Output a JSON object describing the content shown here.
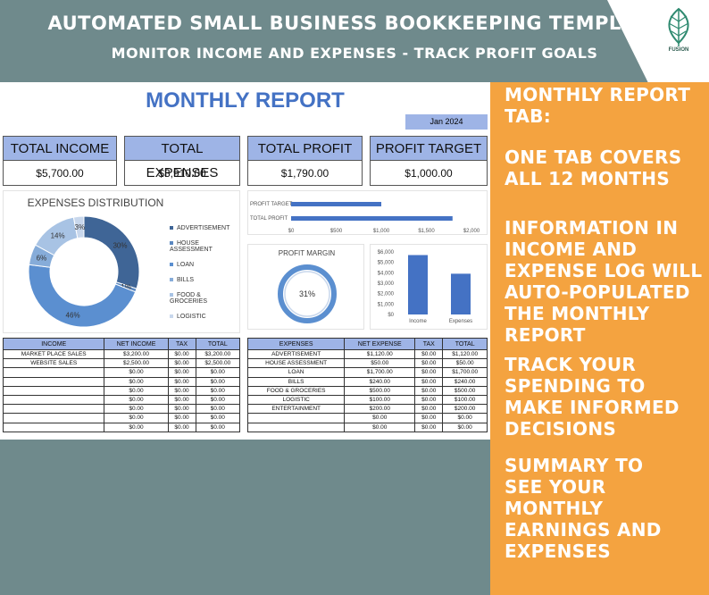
{
  "header": {
    "title": "AUTOMATED SMALL BUSINESS BOOKKEEPING TEMPLATE",
    "subtitle": "MONITOR INCOME AND EXPENSES - TRACK PROFIT GOALS",
    "logo_text": "FUSION"
  },
  "report": {
    "title": "MONTHLY REPORT",
    "month": "Jan 2024",
    "kpis": [
      {
        "label": "TOTAL INCOME",
        "value": "$5,700.00"
      },
      {
        "label": "TOTAL EXPENSES",
        "value": "$3,910.00"
      },
      {
        "label": "TOTAL PROFIT",
        "value": "$1,790.00"
      },
      {
        "label": "PROFIT TARGET",
        "value": "$1,000.00"
      }
    ]
  },
  "chart_data": [
    {
      "type": "pie",
      "title": "EXPENSES DISTRIBUTION",
      "categories": [
        "ADVERTISEMENT",
        "HOUSE ASSESSMENT",
        "LOAN",
        "BILLS",
        "FOOD & GROCERIES",
        "LOGISTIC"
      ],
      "values": [
        30,
        1,
        46,
        6,
        14,
        3
      ],
      "labels": [
        "30%",
        "1%",
        "46%",
        "6%",
        "14%",
        "3%"
      ],
      "colors": [
        "#3f6596",
        "#5b88c0",
        "#5b8fd0",
        "#86acd9",
        "#a8c3e4",
        "#c8d7ec"
      ],
      "legend": "right"
    },
    {
      "type": "bar",
      "orientation": "horizontal",
      "categories": [
        "PROFIT TARGET",
        "TOTAL PROFIT"
      ],
      "values": [
        1000,
        1790
      ],
      "xlim": [
        0,
        2000
      ],
      "ticks": [
        "$0",
        "$500",
        "$1,000",
        "$1,500",
        "$2,000"
      ]
    },
    {
      "type": "pie",
      "title": "PROFIT MARGIN",
      "values": [
        31,
        69
      ],
      "label": "31%"
    },
    {
      "type": "bar",
      "categories": [
        "Income",
        "Expenses"
      ],
      "values": [
        5700,
        3910
      ],
      "ylim": [
        0,
        6000
      ],
      "ticks": [
        "$0",
        "$1,000",
        "$2,000",
        "$3,000",
        "$4,000",
        "$5,000",
        "$6,000"
      ]
    }
  ],
  "income_table": {
    "headers": [
      "INCOME",
      "NET INCOME",
      "TAX",
      "TOTAL"
    ],
    "rows": [
      [
        "MARKET PLACE SALES",
        "$3,200.00",
        "$0.00",
        "$3,200.00"
      ],
      [
        "WEBSITE SALES",
        "$2,500.00",
        "$0.00",
        "$2,500.00"
      ],
      [
        "",
        "$0.00",
        "$0.00",
        "$0.00"
      ],
      [
        "",
        "$0.00",
        "$0.00",
        "$0.00"
      ],
      [
        "",
        "$0.00",
        "$0.00",
        "$0.00"
      ],
      [
        "",
        "$0.00",
        "$0.00",
        "$0.00"
      ],
      [
        "",
        "$0.00",
        "$0.00",
        "$0.00"
      ],
      [
        "",
        "$0.00",
        "$0.00",
        "$0.00"
      ],
      [
        "",
        "$0.00",
        "$0.00",
        "$0.00"
      ]
    ]
  },
  "expense_table": {
    "headers": [
      "EXPENSES",
      "NET EXPENSE",
      "TAX",
      "TOTAL"
    ],
    "rows": [
      [
        "ADVERTISEMENT",
        "$1,120.00",
        "$0.00",
        "$1,120.00"
      ],
      [
        "HOUSE ASSESSMENT",
        "$50.00",
        "$0.00",
        "$50.00"
      ],
      [
        "LOAN",
        "$1,700.00",
        "$0.00",
        "$1,700.00"
      ],
      [
        "BILLS",
        "$240.00",
        "$0.00",
        "$240.00"
      ],
      [
        "FOOD & GROCERIES",
        "$500.00",
        "$0.00",
        "$500.00"
      ],
      [
        "LOGISTIC",
        "$100.00",
        "$0.00",
        "$100.00"
      ],
      [
        "ENTERTAINMENT",
        "$200.00",
        "$0.00",
        "$200.00"
      ],
      [
        "",
        "$0.00",
        "$0.00",
        "$0.00"
      ],
      [
        "",
        "$0.00",
        "$0.00",
        "$0.00"
      ]
    ]
  },
  "side_text": [
    "MONTHLY REPORT TAB:",
    "ONE TAB COVERS ALL 12 MONTHS",
    "INFORMATION IN INCOME AND EXPENSE LOG WILL AUTO-POPULATED THE MONTHLY REPORT",
    "TRACK YOUR SPENDING TO MAKE INFORMED DECISIONS",
    "SUMMARY TO SEE YOUR MONTHLY EARNINGS AND EXPENSES"
  ]
}
